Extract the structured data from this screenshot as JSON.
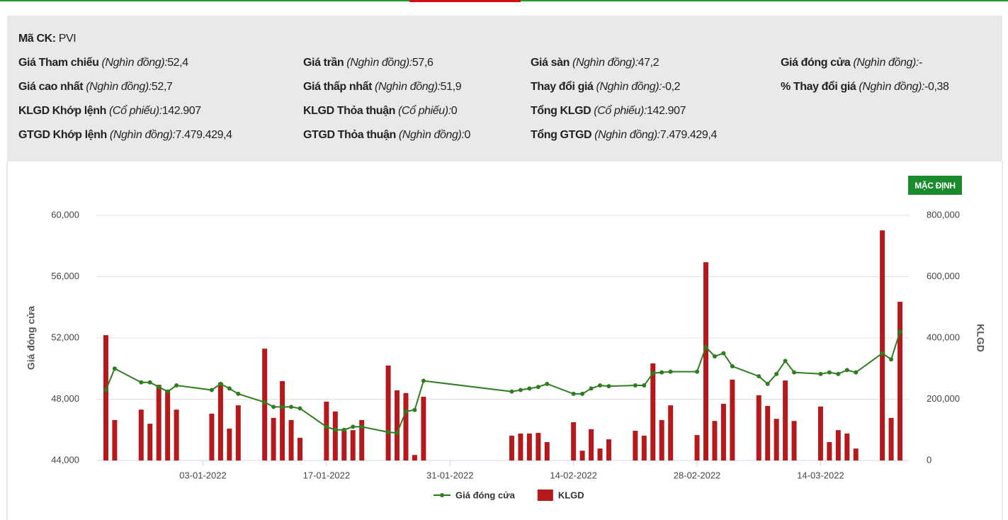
{
  "info": {
    "symbol": {
      "label": "Mã CK:",
      "value": "PVI"
    },
    "rows": [
      [
        {
          "label": "Giá Tham chiếu",
          "unit": "(Nghìn đồng):",
          "value": "52,4"
        },
        {
          "label": "Giá trần",
          "unit": "(Nghìn đồng):",
          "value": "57,6"
        },
        {
          "label": "Giá sàn",
          "unit": "(Nghìn đồng):",
          "value": "47,2"
        },
        {
          "label": "Giá đóng cửa",
          "unit": "(Nghìn đồng):",
          "value": "-"
        }
      ],
      [
        {
          "label": "Giá cao nhất",
          "unit": "(Nghìn đồng):",
          "value": "52,7"
        },
        {
          "label": "Giá thấp nhất",
          "unit": "(Nghìn đồng):",
          "value": "51,9"
        },
        {
          "label": "Thay đổi giá",
          "unit": "(Nghìn đồng):",
          "value": "-0,2"
        },
        {
          "label": "% Thay đổi giá",
          "unit": "(Nghìn đồng):",
          "value": "-0,38"
        }
      ],
      [
        {
          "label": "KLGD Khớp lệnh",
          "unit": "(Cổ phiếu):",
          "value": "142.907"
        },
        {
          "label": "KLGD Thỏa thuận",
          "unit": "(Cổ phiếu):",
          "value": "0"
        },
        {
          "label": "Tổng KLGD",
          "unit": "(Cổ phiếu):",
          "value": "142.907"
        }
      ],
      [
        {
          "label": "GTGD Khớp lệnh",
          "unit": "(Nghìn đồng):",
          "value": "7.479.429,4"
        },
        {
          "label": "GTGD Thỏa thuận",
          "unit": "(Nghìn đồng):",
          "value": "0"
        },
        {
          "label": "Tổng GTGD",
          "unit": "(Nghìn đồng):",
          "value": "7.479.429,4"
        }
      ]
    ],
    "button": "MẶC ĐỊNH"
  },
  "chart_data": {
    "type": "combo",
    "ylabel": "Giá đóng cửa",
    "y2label": "KLGD",
    "x": [
      "23-12-2021",
      "24-12-2021",
      "27-12-2021",
      "28-12-2021",
      "29-12-2021",
      "30-12-2021",
      "31-12-2021",
      "04-01-2022",
      "05-01-2022",
      "06-01-2022",
      "07-01-2022",
      "10-01-2022",
      "11-01-2022",
      "12-01-2022",
      "13-01-2022",
      "14-01-2022",
      "17-01-2022",
      "18-01-2022",
      "19-01-2022",
      "20-01-2022",
      "21-01-2022",
      "24-01-2022",
      "25-01-2022",
      "26-01-2022",
      "27-01-2022",
      "28-01-2022",
      "07-02-2022",
      "08-02-2022",
      "09-02-2022",
      "10-02-2022",
      "11-02-2022",
      "14-02-2022",
      "15-02-2022",
      "16-02-2022",
      "17-02-2022",
      "18-02-2022",
      "21-02-2022",
      "22-02-2022",
      "23-02-2022",
      "24-02-2022",
      "25-02-2022",
      "28-02-2022",
      "01-03-2022",
      "02-03-2022",
      "03-03-2022",
      "04-03-2022",
      "07-03-2022",
      "08-03-2022",
      "09-03-2022",
      "10-03-2022",
      "11-03-2022",
      "14-03-2022",
      "15-03-2022",
      "16-03-2022",
      "17-03-2022",
      "18-03-2022",
      "21-03-2022",
      "22-03-2022",
      "23-03-2022"
    ],
    "xlim": [
      "22-12-2021",
      "24-03-2022"
    ],
    "xticks": [
      "03-01-2022",
      "17-01-2022",
      "31-01-2022",
      "14-02-2022",
      "28-02-2022",
      "14-03-2022"
    ],
    "ylim": [
      44000,
      60000
    ],
    "yticks": [
      {
        "value": 44000,
        "label": "44,000"
      },
      {
        "value": 48000,
        "label": "48,000"
      },
      {
        "value": 52000,
        "label": "52,000"
      },
      {
        "value": 56000,
        "label": "56,000"
      },
      {
        "value": 60000,
        "label": "60,000"
      }
    ],
    "y2lim": [
      0,
      800000
    ],
    "y2ticks": [
      0,
      {
        "value": 200000,
        "label": "200,000"
      },
      {
        "value": 400000,
        "label": "400,000"
      },
      {
        "value": 600000,
        "label": "600,000"
      },
      {
        "value": 800000,
        "label": "800,000"
      }
    ],
    "grid": true,
    "series": [
      {
        "name": "Giá đóng cửa",
        "kind": "line",
        "color": "#2e7d1e",
        "values": [
          48600,
          50000,
          49100,
          49100,
          48800,
          48500,
          48900,
          48600,
          49000,
          48700,
          48350,
          47800,
          47500,
          47500,
          47500,
          47400,
          46200,
          46000,
          46000,
          46200,
          46200,
          45850,
          45800,
          47200,
          47300,
          49200,
          48500,
          48600,
          48700,
          48800,
          49000,
          48350,
          48350,
          48700,
          48900,
          48850,
          48900,
          48900,
          49700,
          49750,
          49800,
          49800,
          51400,
          50800,
          51000,
          50150,
          49500,
          49000,
          49650,
          50500,
          49750,
          49650,
          49750,
          49650,
          49900,
          49750,
          51000,
          50600,
          52400
        ]
      },
      {
        "name": "KLGD",
        "kind": "bar",
        "axis": "y2",
        "color": "#b5191b",
        "values": [
          409000,
          132000,
          166000,
          120000,
          247000,
          231000,
          166000,
          153000,
          254000,
          104000,
          180000,
          365000,
          139000,
          259000,
          132000,
          74000,
          192000,
          160000,
          99000,
          99000,
          132000,
          310000,
          229000,
          220000,
          18000,
          208000,
          81000,
          88000,
          88000,
          90000,
          60000,
          125000,
          32000,
          102000,
          39000,
          69000,
          97000,
          81000,
          317000,
          132000,
          180000,
          83000,
          647000,
          129000,
          185000,
          264000,
          213000,
          178000,
          136000,
          261000,
          129000,
          176000,
          60000,
          99000,
          88000,
          39000,
          751000,
          139000,
          518000
        ]
      }
    ]
  }
}
